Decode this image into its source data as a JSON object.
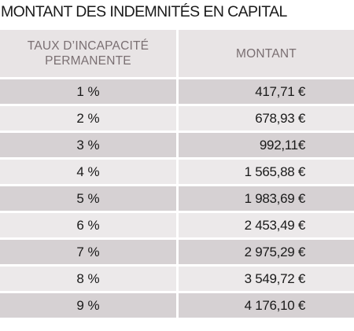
{
  "title": "MONTANT DES INDEMNITÉS EN CAPITAL",
  "table": {
    "headers": {
      "rate": "TAUX D’INCAPACITÉ PERMANENTE",
      "amount": "MONTANT"
    },
    "rows": [
      {
        "rate": "1 %",
        "amount": "417,71 €"
      },
      {
        "rate": "2 %",
        "amount": "678,93 €"
      },
      {
        "rate": "3 %",
        "amount": "992,11€"
      },
      {
        "rate": "4 %",
        "amount": "1 565,88 €"
      },
      {
        "rate": "5 %",
        "amount": "1 983,69 €"
      },
      {
        "rate": "6 %",
        "amount": "2 453,49 €"
      },
      {
        "rate": "7 %",
        "amount": "2 975,29 €"
      },
      {
        "rate": "8 %",
        "amount": "3 549,72 €"
      },
      {
        "rate": "9 %",
        "amount": "4 176,10 €"
      }
    ]
  }
}
